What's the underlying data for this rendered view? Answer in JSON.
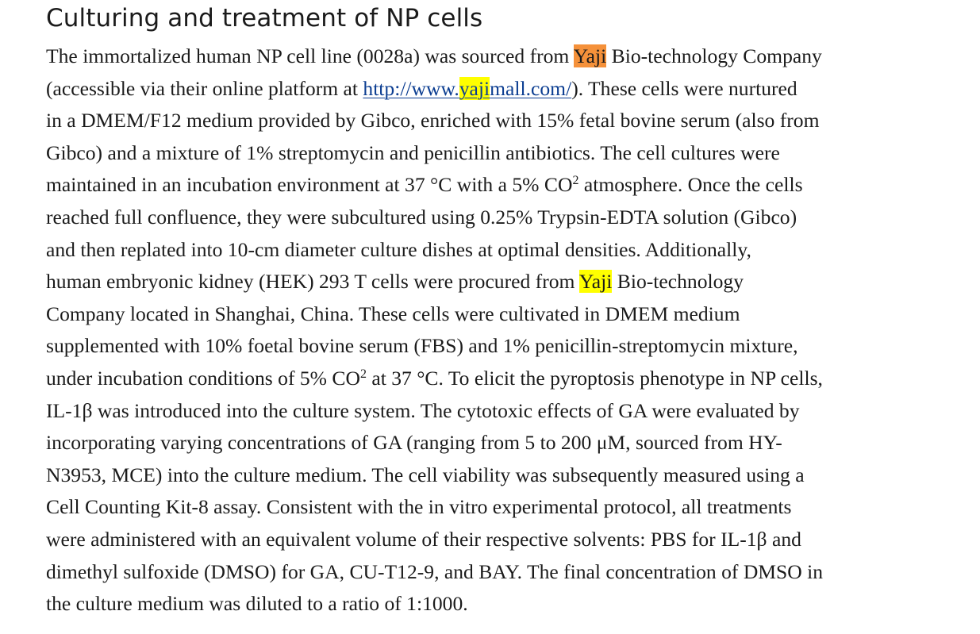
{
  "section": {
    "heading": "Culturing and treatment of NP cells"
  },
  "paragraph": {
    "line1": {
      "before": "The immortalized human NP cell line (0028a) was sourced from ",
      "highlight_current": "Yaji",
      "after": " Bio-technology Company"
    },
    "line2": {
      "before": "(accessible via their online platform at ",
      "link_prefix": "http://www.",
      "link_highlight": "yaji",
      "link_suffix": "mall.com/",
      "after": "). These cells were nurtured"
    },
    "line3": "in a DMEM/F12 medium provided by Gibco, enriched with 15% fetal bovine serum (also from",
    "line4": "Gibco) and a mixture of 1% streptomycin and penicillin antibiotics. The cell cultures were",
    "line5": {
      "before": "maintained in an incubation environment at 37 °C with a 5% CO",
      "sup": "2",
      "after": " atmosphere. Once the cells"
    },
    "line6": "reached full confluence, they were subcultured using 0.25% Trypsin-EDTA solution (Gibco)",
    "line7": "and then replated into 10-cm diameter culture dishes at optimal densities. Additionally,",
    "line8": {
      "before": "human embryonic kidney (HEK) 293 T cells were procured from ",
      "highlight": "Yaji",
      "after": " Bio-technology"
    },
    "line9": "Company located in Shanghai, China. These cells were cultivated in DMEM medium",
    "line10": "supplemented with 10% foetal bovine serum (FBS) and 1% penicillin-streptomycin mixture,",
    "line11": {
      "before": "under incubation conditions of 5% CO",
      "sup": "2",
      "after": " at 37 °C. To elicit the pyroptosis phenotype in NP cells,"
    },
    "line12": "IL-1β was introduced into the culture system. The cytotoxic effects of GA were evaluated by",
    "line13": "incorporating varying concentrations of GA (ranging from 5 to 200 μM, sourced from HY-",
    "line14": "N3953, MCE) into the culture medium. The cell viability was subsequently measured using a",
    "line15": "Cell Counting Kit-8 assay. Consistent with the in vitro experimental protocol, all treatments",
    "line16": "were administered with an equivalent volume of their respective solvents: PBS for IL-1β and",
    "line17": "dimethyl sulfoxide (DMSO) for GA, CU-T12-9, and BAY. The final concentration of DMSO in",
    "line18": "the culture medium was diluted to a ratio of 1:1000."
  },
  "colors": {
    "text": "#1b1b1b",
    "link": "#0b3d91",
    "highlight_current": "#f5913a",
    "highlight": "#ffff00"
  }
}
